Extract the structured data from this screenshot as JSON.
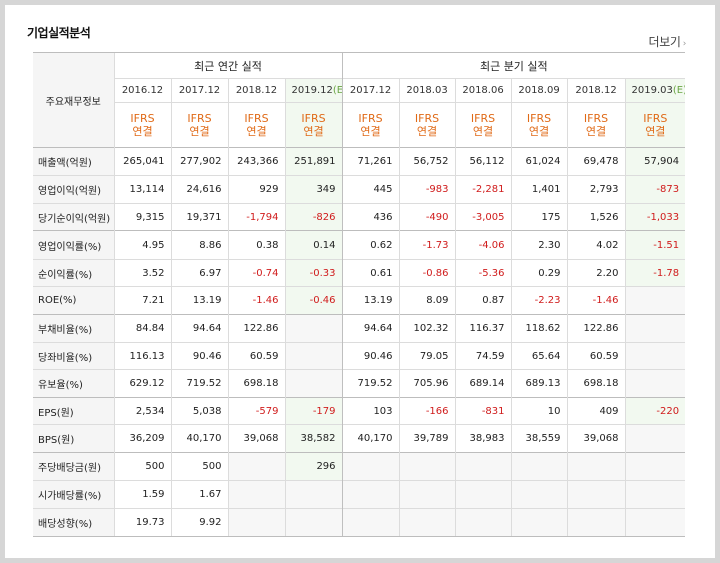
{
  "title": "기업실적분석",
  "more_label": "더보기",
  "more_icon": "chevron-right-icon",
  "colors": {
    "negative": "#d01c1c",
    "ifrs": "#e06a17",
    "estimate_bg": "#f2f9f0",
    "estimate_mark": "#6aa544"
  },
  "header": {
    "info_label": "주요재무정보",
    "annual_label": "최근 연간 실적",
    "quarter_label": "최근 분기 실적",
    "periods": [
      "2016.12",
      "2017.12",
      "2018.12",
      "2019.12",
      "2017.12",
      "2018.03",
      "2018.06",
      "2018.09",
      "2018.12",
      "2019.03"
    ],
    "estimate_flags": [
      false,
      false,
      false,
      true,
      false,
      false,
      false,
      false,
      false,
      true
    ],
    "estimate_mark": "(E)",
    "ifrs_top": "IFRS",
    "ifrs_bottom": "연결"
  },
  "rows": [
    {
      "label": "매출액(억원)",
      "values": [
        "265,041",
        "277,902",
        "243,366",
        "251,891",
        "71,261",
        "56,752",
        "56,112",
        "61,024",
        "69,478",
        "57,904"
      ]
    },
    {
      "label": "영업이익(억원)",
      "values": [
        "13,114",
        "24,616",
        "929",
        "349",
        "445",
        "-983",
        "-2,281",
        "1,401",
        "2,793",
        "-873"
      ]
    },
    {
      "label": "당기순이익(억원)",
      "values": [
        "9,315",
        "19,371",
        "-1,794",
        "-826",
        "436",
        "-490",
        "-3,005",
        "175",
        "1,526",
        "-1,033"
      ]
    },
    {
      "label": "영업이익률(%)",
      "values": [
        "4.95",
        "8.86",
        "0.38",
        "0.14",
        "0.62",
        "-1.73",
        "-4.06",
        "2.30",
        "4.02",
        "-1.51"
      ]
    },
    {
      "label": "순이익률(%)",
      "values": [
        "3.52",
        "6.97",
        "-0.74",
        "-0.33",
        "0.61",
        "-0.86",
        "-5.36",
        "0.29",
        "2.20",
        "-1.78"
      ]
    },
    {
      "label": "ROE(%)",
      "values": [
        "7.21",
        "13.19",
        "-1.46",
        "-0.46",
        "13.19",
        "8.09",
        "0.87",
        "-2.23",
        "-1.46",
        ""
      ]
    },
    {
      "label": "부채비율(%)",
      "values": [
        "84.84",
        "94.64",
        "122.86",
        "",
        "94.64",
        "102.32",
        "116.37",
        "118.62",
        "122.86",
        ""
      ]
    },
    {
      "label": "당좌비율(%)",
      "values": [
        "116.13",
        "90.46",
        "60.59",
        "",
        "90.46",
        "79.05",
        "74.59",
        "65.64",
        "60.59",
        ""
      ]
    },
    {
      "label": "유보율(%)",
      "values": [
        "629.12",
        "719.52",
        "698.18",
        "",
        "719.52",
        "705.96",
        "689.14",
        "689.13",
        "698.18",
        ""
      ]
    },
    {
      "label": "EPS(원)",
      "values": [
        "2,534",
        "5,038",
        "-579",
        "-179",
        "103",
        "-166",
        "-831",
        "10",
        "409",
        "-220"
      ]
    },
    {
      "label": "BPS(원)",
      "values": [
        "36,209",
        "40,170",
        "39,068",
        "38,582",
        "40,170",
        "39,789",
        "38,983",
        "38,559",
        "39,068",
        ""
      ]
    },
    {
      "label": "주당배당금(원)",
      "values": [
        "500",
        "500",
        "",
        "296",
        "",
        "",
        "",
        "",
        "",
        ""
      ]
    },
    {
      "label": "시가배당률(%)",
      "values": [
        "1.59",
        "1.67",
        "",
        "",
        "",
        "",
        "",
        "",
        "",
        ""
      ]
    },
    {
      "label": "배당성향(%)",
      "values": [
        "19.73",
        "9.92",
        "",
        "",
        "",
        "",
        "",
        "",
        "",
        ""
      ]
    }
  ]
}
